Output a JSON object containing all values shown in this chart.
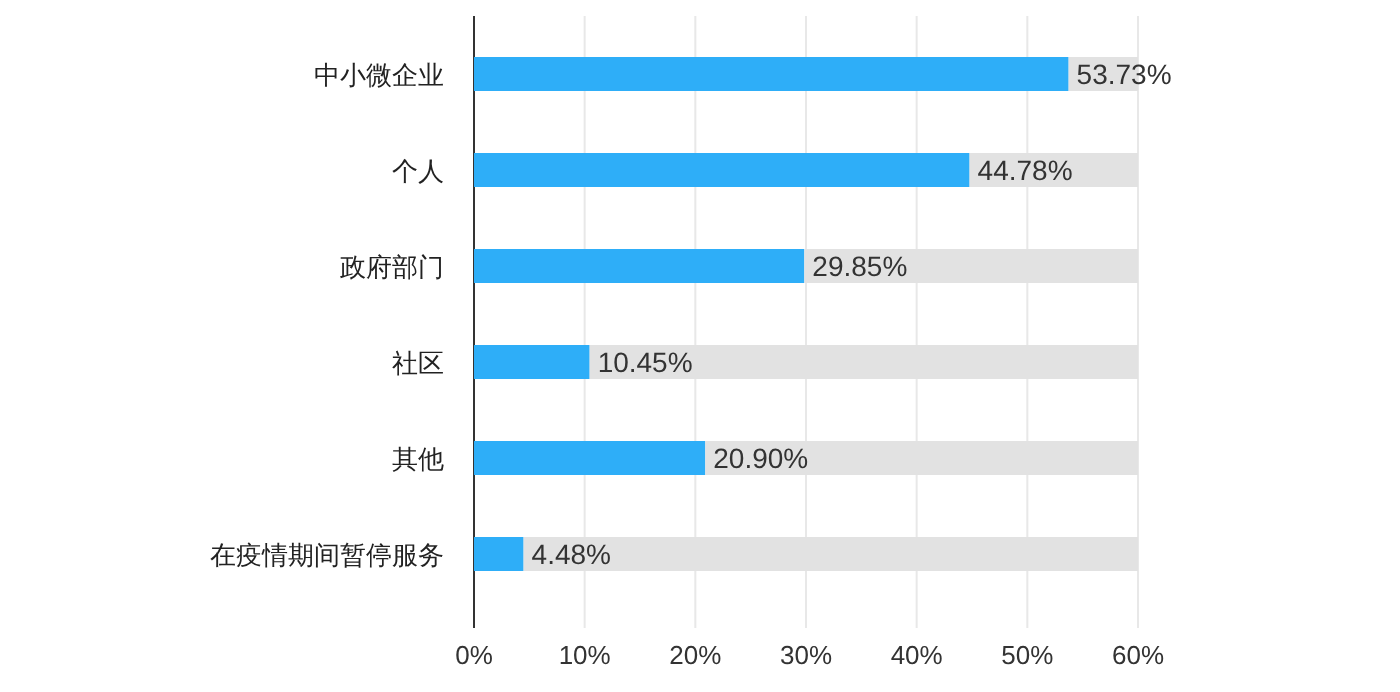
{
  "chart_data": {
    "type": "bar",
    "orientation": "horizontal",
    "categories": [
      "中小微企业",
      "个人",
      "政府部门",
      "社区",
      "其他",
      "在疫情期间暂停服务"
    ],
    "stacked": true,
    "series": [
      {
        "color": "#2eaef8",
        "values": [
          53.73,
          44.78,
          29.85,
          10.45,
          20.9,
          4.48
        ],
        "value_labels": [
          "53.73%",
          "44.78%",
          "29.85%",
          "10.45%",
          "20.90%",
          "4.48%"
        ]
      },
      {
        "color": "#e2e2e2",
        "values": [
          6.27,
          15.22,
          30.15,
          49.55,
          39.1,
          55.52
        ]
      }
    ],
    "xlim": [
      0,
      60
    ],
    "xticks": [
      {
        "value": 0,
        "label": "0%"
      },
      {
        "value": 10,
        "label": "10%"
      },
      {
        "value": 20,
        "label": "20%"
      },
      {
        "value": 30,
        "label": "30%"
      },
      {
        "value": 40,
        "label": "40%"
      },
      {
        "value": 50,
        "label": "50%"
      },
      {
        "value": 60,
        "label": "60%"
      }
    ],
    "grid": "x"
  }
}
